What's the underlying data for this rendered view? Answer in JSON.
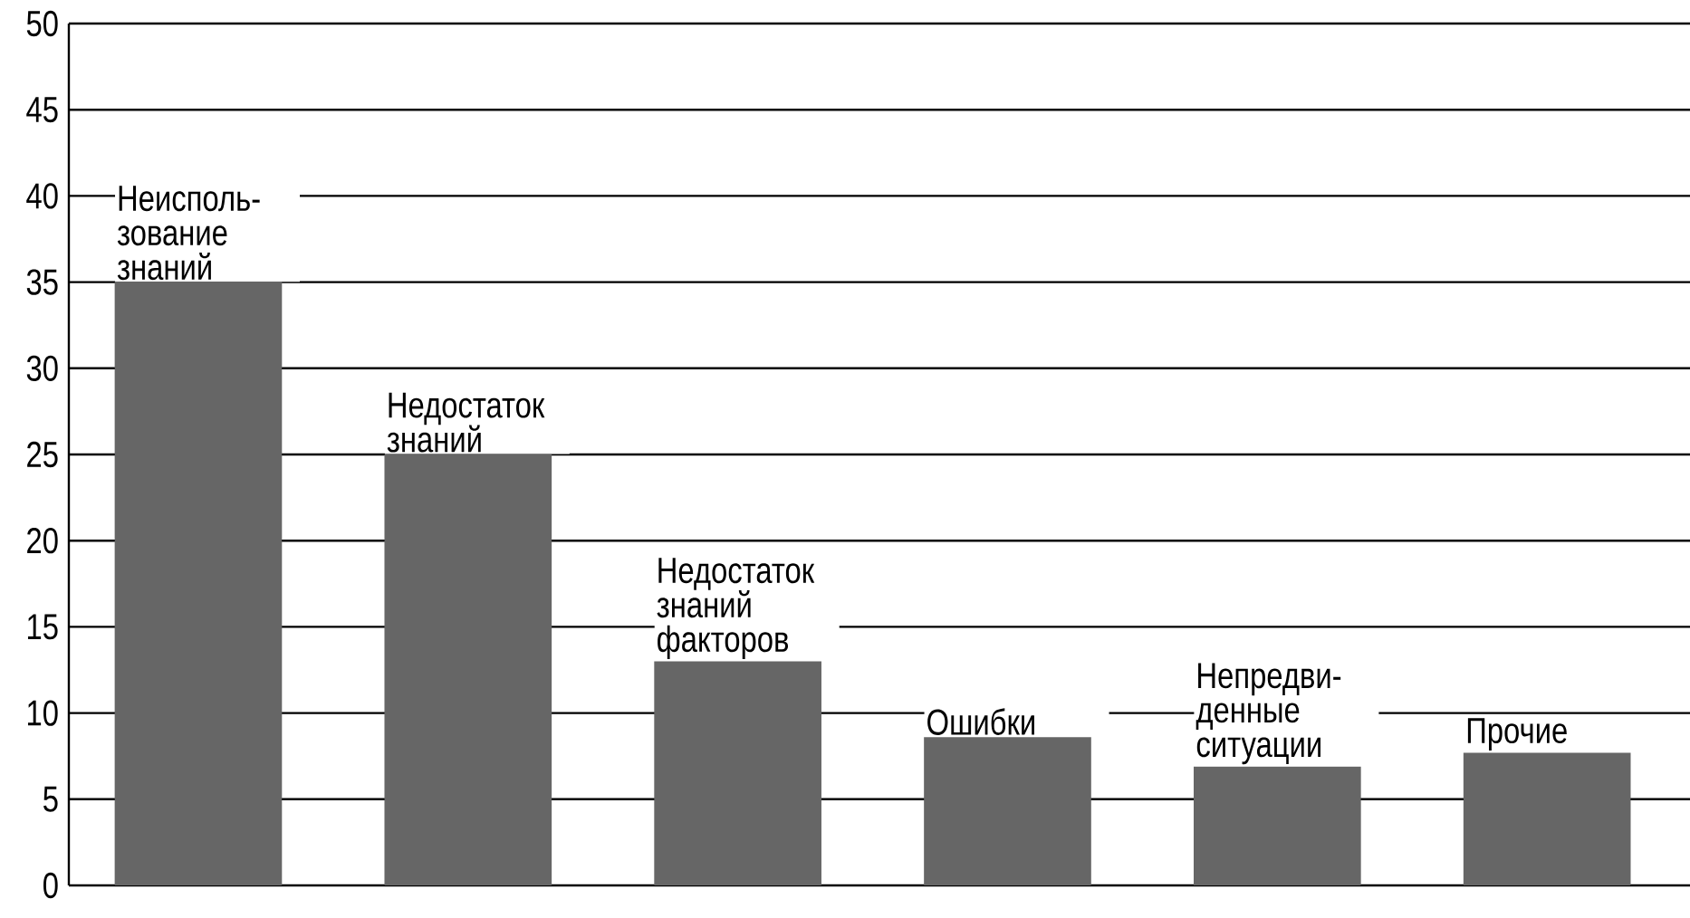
{
  "chart_data": {
    "type": "bar",
    "categories": [
      "Неисполь-зование знаний",
      "Недостаток знаний",
      "Недостаток знаний факторов",
      "Ошибки",
      "Непредви-денные ситуации",
      "Прочие"
    ],
    "values": [
      35,
      25,
      13,
      8.6,
      6.9,
      7.7
    ],
    "color": "#666666",
    "ylim": [
      0,
      50
    ],
    "yticks": [
      0,
      5,
      10,
      15,
      20,
      25,
      30,
      35,
      40,
      45,
      50
    ],
    "grid": "y",
    "tick_labels": "y"
  }
}
